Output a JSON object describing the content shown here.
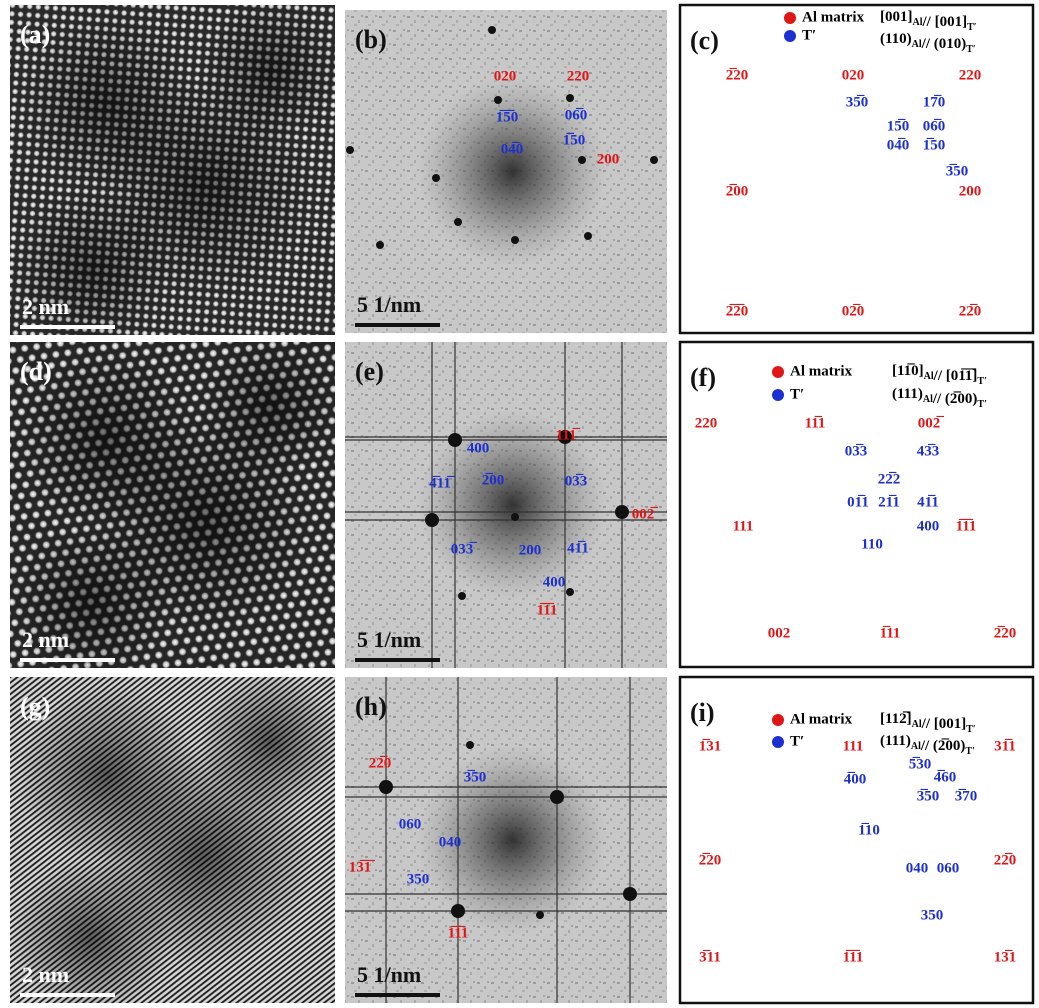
{
  "panels": [
    {
      "kind": "hrtem",
      "label": "(a)",
      "scale_bar": "2 nm"
    },
    {
      "kind": "fft",
      "label": "(b)",
      "scale_bar": "5 1/nm",
      "red": [
        "020",
        "220",
        "200"
      ],
      "blue": [
        "1̅5̅0",
        "06̅0",
        "04̅0",
        "1̅̅50"
      ]
    },
    {
      "kind": "pattern",
      "label": "(c)",
      "legend": [
        "Al matrix",
        "T′"
      ],
      "relations": [
        [
          {
            "t": "[001]",
            "sub": "Al"
          },
          {
            "t": "// [001]",
            "sub": "T′"
          }
        ],
        [
          {
            "t": "(110)",
            "sub": "Al"
          },
          {
            "t": "// (010)",
            "sub": "T′"
          }
        ]
      ],
      "red": [
        "2̅20",
        "020",
        "220",
        "2̅00",
        "200",
        "2̅2̅0",
        "02̅0",
        "22̅0"
      ],
      "blue": [
        "35̅0",
        "17̅0",
        "15̅0",
        "06̅0",
        "04̅0",
        "1̅50",
        "3̅50"
      ]
    },
    {
      "kind": "hrtem",
      "label": "(d)",
      "scale_bar": "2 nm"
    },
    {
      "kind": "fft",
      "label": "(e)",
      "scale_bar": "5 1/nm",
      "red": [
        "111̅",
        "002̅",
        "1̅1̅1"
      ],
      "blue": [
        "400",
        "4̅11̅",
        "2̅00",
        "03̅3",
        "033̅",
        "200",
        "41̅1",
        "400"
      ]
    },
    {
      "kind": "pattern",
      "label": "(f)",
      "legend": [
        "Al matrix",
        "T′"
      ],
      "relations": [
        [
          {
            "t": "[11̅0]",
            "sub": "Al"
          },
          {
            "t": "// [01̅1̅]",
            "sub": "T′"
          }
        ],
        [
          {
            "t": "(111)",
            "sub": "Al"
          },
          {
            "t": "// (2̅00)",
            "sub": "T′"
          }
        ]
      ],
      "red": [
        "220",
        "11̅1",
        "002̅",
        "111",
        "1̅1̅1",
        "002",
        "1̅11",
        "2̅20"
      ],
      "blue": [
        "03̅3",
        "43̅3",
        "22̅2",
        "01̅1",
        "21̅1",
        "41̅1",
        "400",
        "110"
      ]
    },
    {
      "kind": "hrtem",
      "label": "(g)",
      "scale_bar": "2 nm"
    },
    {
      "kind": "fft",
      "label": "(h)",
      "scale_bar": "5 1/nm",
      "red": [
        "22̅0",
        "13̅1̅",
        "1̅1̅1"
      ],
      "blue": [
        "3̅50",
        "060",
        "040",
        "350"
      ]
    },
    {
      "kind": "pattern",
      "label": "(i)",
      "legend": [
        "Al matrix",
        "T′"
      ],
      "relations": [
        [
          {
            "t": "[112̅]",
            "sub": "Al"
          },
          {
            "t": "// [001]",
            "sub": "T′"
          }
        ],
        [
          {
            "t": "(111)",
            "sub": "Al"
          },
          {
            "t": "// (2̅00)",
            "sub": "T′"
          }
        ]
      ],
      "red": [
        "1̅31",
        "111",
        "31̅1",
        "2̅20",
        "22̅0",
        "3̅11",
        "1̅1̅1",
        "13̅1"
      ],
      "blue": [
        "5̅30",
        "4̅00",
        "4̅60",
        "3̅50",
        "3̅70",
        "1̅10",
        "040",
        "060",
        "350"
      ]
    }
  ]
}
